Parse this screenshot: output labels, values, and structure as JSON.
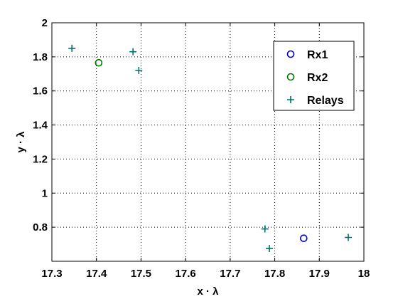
{
  "chart_data": {
    "type": "scatter",
    "xlabel": "x · λ",
    "ylabel": "y · λ",
    "xlim": [
      17.3,
      18
    ],
    "ylim": [
      0.6,
      2
    ],
    "xticks": [
      "17.3",
      "17.4",
      "17.5",
      "17.6",
      "17.7",
      "17.8",
      "17.9",
      "18"
    ],
    "yticks": [
      "0.8",
      "1",
      "1.2",
      "1.4",
      "1.6",
      "1.8",
      "2"
    ],
    "xtick_values": [
      17.3,
      17.4,
      17.5,
      17.6,
      17.7,
      17.8,
      17.9,
      18
    ],
    "ytick_values": [
      0.8,
      1,
      1.2,
      1.4,
      1.6,
      1.8,
      2
    ],
    "grid": true,
    "legend_position": "top-right",
    "series": [
      {
        "name": "Rx1",
        "marker": "circle",
        "color": "#0000cc",
        "points": [
          [
            17.865,
            0.735
          ]
        ]
      },
      {
        "name": "Rx2",
        "marker": "circle",
        "color": "#007700",
        "points": [
          [
            17.405,
            1.765
          ]
        ]
      },
      {
        "name": "Relays",
        "marker": "plus",
        "color": "#007070",
        "points": [
          [
            17.345,
            1.85
          ],
          [
            17.482,
            1.83
          ],
          [
            17.495,
            1.72
          ],
          [
            17.778,
            0.79
          ],
          [
            17.788,
            0.675
          ],
          [
            17.965,
            0.74
          ]
        ]
      }
    ]
  }
}
